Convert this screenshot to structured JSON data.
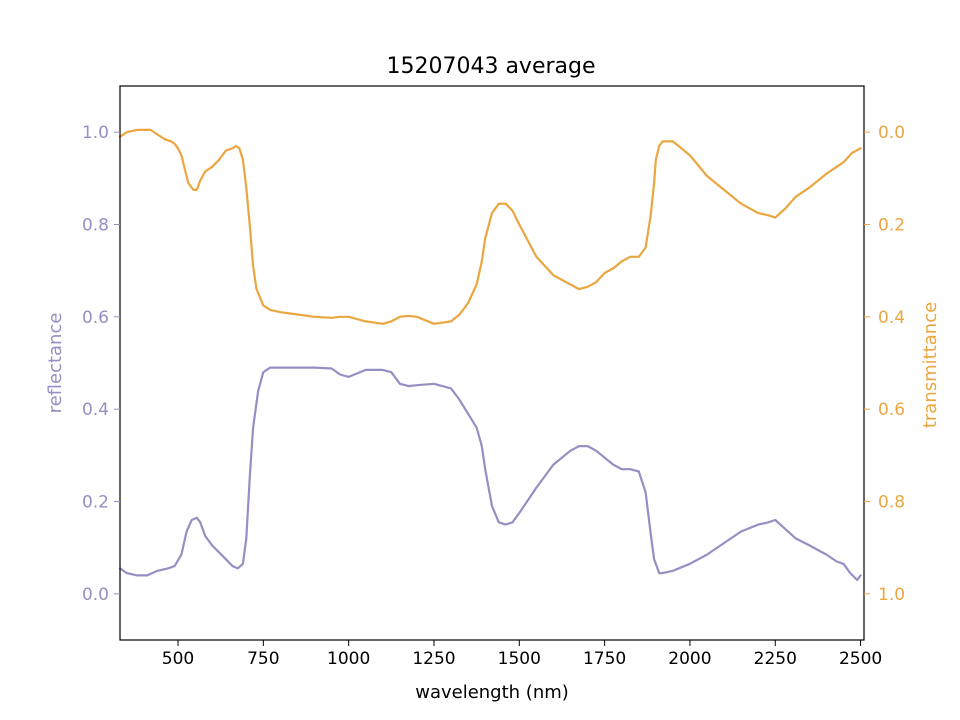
{
  "chart_data": {
    "type": "line",
    "title": "15207043 average",
    "xlabel": "wavelength (nm)",
    "ylabel_left": "reflectance",
    "ylabel_right": "transmittance",
    "xlim": [
      330,
      2510
    ],
    "ylim_left": [
      -0.1,
      1.1
    ],
    "ylim_right_inverted": [
      1.1,
      -0.1
    ],
    "x_ticks": [
      500,
      750,
      1000,
      1250,
      1500,
      1750,
      2000,
      2250,
      2500
    ],
    "x_tick_labels": [
      "500",
      "750",
      "1000",
      "1250",
      "1500",
      "1750",
      "2000",
      "2250",
      "2500"
    ],
    "y_left_ticks": [
      0.0,
      0.2,
      0.4,
      0.6,
      0.8,
      1.0
    ],
    "y_left_tick_labels": [
      "0.0",
      "0.2",
      "0.4",
      "0.6",
      "0.8",
      "1.0"
    ],
    "y_right_ticks": [
      0.0,
      0.2,
      0.4,
      0.6,
      0.8,
      1.0
    ],
    "y_right_tick_labels": [
      "0.0",
      "0.2",
      "0.4",
      "0.6",
      "0.8",
      "1.0"
    ],
    "grid": false,
    "legend": "none",
    "colors": {
      "reflectance": "#9590c3",
      "transmittance": "#eba640"
    },
    "series": [
      {
        "axis": "left",
        "color": "#9590c3",
        "x": [
          330,
          350,
          380,
          410,
          440,
          470,
          490,
          510,
          525,
          540,
          555,
          565,
          580,
          600,
          620,
          640,
          660,
          675,
          690,
          700,
          710,
          720,
          735,
          750,
          770,
          800,
          850,
          900,
          950,
          975,
          1000,
          1050,
          1100,
          1125,
          1150,
          1175,
          1200,
          1250,
          1300,
          1325,
          1350,
          1375,
          1390,
          1400,
          1420,
          1440,
          1460,
          1480,
          1500,
          1550,
          1600,
          1650,
          1675,
          1700,
          1725,
          1750,
          1775,
          1800,
          1825,
          1850,
          1870,
          1885,
          1895,
          1900,
          1910,
          1920,
          1950,
          2000,
          2050,
          2100,
          2150,
          2200,
          2230,
          2250,
          2280,
          2310,
          2350,
          2400,
          2430,
          2450,
          2470,
          2490,
          2500
        ],
        "y": [
          0.055,
          0.045,
          0.04,
          0.04,
          0.05,
          0.055,
          0.06,
          0.085,
          0.135,
          0.16,
          0.165,
          0.155,
          0.125,
          0.105,
          0.09,
          0.075,
          0.06,
          0.055,
          0.065,
          0.12,
          0.25,
          0.36,
          0.44,
          0.48,
          0.49,
          0.49,
          0.49,
          0.49,
          0.488,
          0.475,
          0.47,
          0.485,
          0.485,
          0.48,
          0.455,
          0.45,
          0.452,
          0.455,
          0.445,
          0.42,
          0.39,
          0.36,
          0.32,
          0.27,
          0.19,
          0.155,
          0.15,
          0.155,
          0.175,
          0.23,
          0.28,
          0.31,
          0.32,
          0.32,
          0.31,
          0.295,
          0.28,
          0.27,
          0.27,
          0.265,
          0.22,
          0.13,
          0.075,
          0.065,
          0.045,
          0.045,
          0.05,
          0.065,
          0.085,
          0.11,
          0.135,
          0.15,
          0.155,
          0.16,
          0.14,
          0.12,
          0.105,
          0.085,
          0.07,
          0.065,
          0.045,
          0.03,
          0.04
        ]
      },
      {
        "axis": "right",
        "color": "#eba640",
        "x": [
          330,
          350,
          380,
          400,
          420,
          440,
          460,
          480,
          490,
          500,
          510,
          520,
          530,
          545,
          555,
          565,
          580,
          600,
          620,
          640,
          660,
          670,
          680,
          690,
          700,
          710,
          720,
          730,
          750,
          770,
          800,
          850,
          900,
          950,
          975,
          1000,
          1050,
          1100,
          1125,
          1150,
          1175,
          1200,
          1250,
          1300,
          1325,
          1350,
          1375,
          1390,
          1400,
          1420,
          1440,
          1460,
          1480,
          1500,
          1550,
          1600,
          1650,
          1675,
          1700,
          1725,
          1750,
          1775,
          1800,
          1825,
          1850,
          1870,
          1885,
          1895,
          1900,
          1910,
          1920,
          1950,
          2000,
          2050,
          2100,
          2150,
          2200,
          2230,
          2250,
          2280,
          2310,
          2350,
          2400,
          2450,
          2475,
          2500
        ],
        "y": [
          0.01,
          0.0,
          -0.005,
          -0.005,
          -0.005,
          0.005,
          0.015,
          0.02,
          0.025,
          0.035,
          0.05,
          0.08,
          0.11,
          0.125,
          0.125,
          0.105,
          0.085,
          0.075,
          0.06,
          0.04,
          0.035,
          0.03,
          0.035,
          0.06,
          0.12,
          0.2,
          0.29,
          0.34,
          0.375,
          0.385,
          0.39,
          0.395,
          0.4,
          0.402,
          0.4,
          0.4,
          0.41,
          0.415,
          0.41,
          0.4,
          0.398,
          0.4,
          0.415,
          0.41,
          0.395,
          0.37,
          0.33,
          0.28,
          0.23,
          0.175,
          0.155,
          0.155,
          0.17,
          0.2,
          0.27,
          0.31,
          0.33,
          0.34,
          0.335,
          0.325,
          0.305,
          0.295,
          0.28,
          0.27,
          0.27,
          0.25,
          0.18,
          0.11,
          0.06,
          0.03,
          0.02,
          0.02,
          0.05,
          0.095,
          0.125,
          0.155,
          0.175,
          0.18,
          0.185,
          0.165,
          0.14,
          0.12,
          0.09,
          0.065,
          0.045,
          0.035
        ]
      }
    ]
  }
}
